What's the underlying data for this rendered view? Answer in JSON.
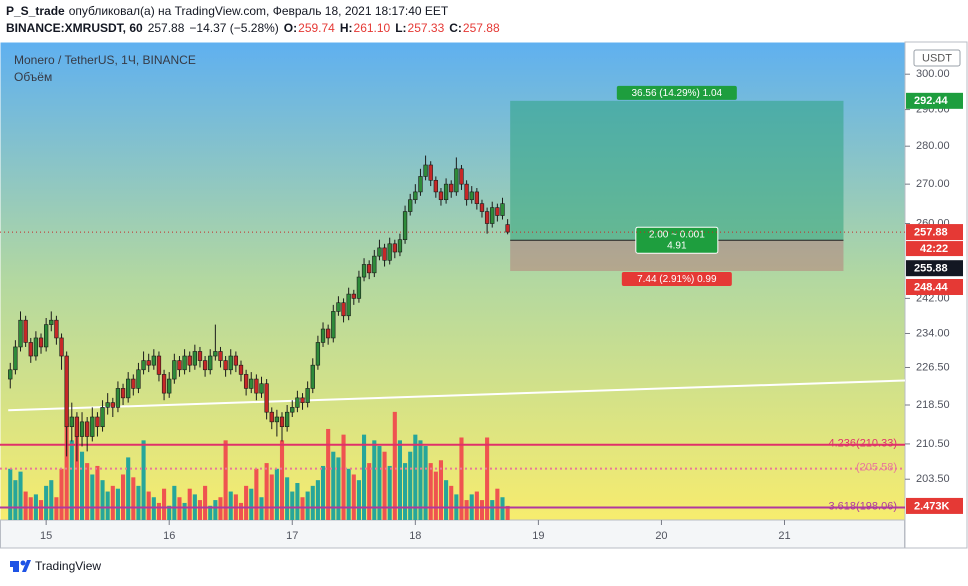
{
  "header": {
    "author": "P_S_trade",
    "published": "опубликовал(а) на TradingView.com, Февраль 18, 2021 18:17:40 EET",
    "symbol": "BINANCE:XMRUSDT, 60",
    "last": "257.88",
    "change": "−14.37 (−5.28%)",
    "ohlc": [
      {
        "key": "O:",
        "value": "259.74"
      },
      {
        "key": "H:",
        "value": "261.10"
      },
      {
        "key": "L:",
        "value": "257.33"
      },
      {
        "key": "C:",
        "value": "257.88"
      }
    ]
  },
  "chart_data": {
    "type": "candlestick",
    "title": "Monero / TetherUS, 1Ч, BINANCE",
    "volume_title": "Объём",
    "currency": "USDT",
    "log_scale": true,
    "ylim": [
      195.7,
      309.4
    ],
    "yticks": [
      {
        "value": 300,
        "label": "300.00"
      },
      {
        "value": 290,
        "label": "290.00"
      },
      {
        "value": 280,
        "label": "280.00"
      },
      {
        "value": 270,
        "label": "270.00"
      },
      {
        "value": 260,
        "label": "260.00"
      },
      {
        "value": 242,
        "label": "242.00"
      },
      {
        "value": 234,
        "label": "234.00"
      },
      {
        "value": 226.5,
        "label": "226.50"
      },
      {
        "value": 218.5,
        "label": "218.50"
      },
      {
        "value": 210.5,
        "label": "210.50"
      },
      {
        "value": 203.5,
        "label": "203.50"
      }
    ],
    "xlim": [
      -2,
      174.5
    ],
    "xticks": [
      {
        "value": 7,
        "label": "15"
      },
      {
        "value": 31,
        "label": "16"
      },
      {
        "value": 55,
        "label": "17"
      },
      {
        "value": 79,
        "label": "18"
      },
      {
        "value": 103,
        "label": "19"
      },
      {
        "value": 127,
        "label": "20"
      },
      {
        "value": 151,
        "label": "21"
      }
    ],
    "up_color": "#2e8b3a",
    "down_color": "#c62828",
    "volume_up_color": "#26a69a",
    "volume_down_color": "#ef5350",
    "candles": [
      [
        224,
        227.5,
        222,
        226
      ],
      [
        226,
        232.5,
        225,
        231
      ],
      [
        231,
        239,
        230,
        237
      ],
      [
        237,
        238,
        231,
        232
      ],
      [
        232,
        233,
        227.5,
        229
      ],
      [
        229,
        234.5,
        228,
        233
      ],
      [
        233,
        234,
        229.5,
        231
      ],
      [
        231,
        237.5,
        230,
        236
      ],
      [
        236,
        239,
        234.5,
        237
      ],
      [
        237,
        238,
        231.5,
        233
      ],
      [
        233,
        234,
        226,
        229
      ],
      [
        229,
        230,
        208,
        214
      ],
      [
        214,
        219,
        211,
        216
      ],
      [
        216,
        217,
        207,
        212
      ],
      [
        212,
        217,
        210,
        215
      ],
      [
        215,
        216,
        209,
        212
      ],
      [
        212,
        218,
        211,
        216
      ],
      [
        216,
        217,
        212,
        214
      ],
      [
        214,
        219.5,
        213,
        218
      ],
      [
        218,
        221,
        216.5,
        219
      ],
      [
        219,
        220,
        216,
        218
      ],
      [
        218,
        223.5,
        217,
        222
      ],
      [
        222,
        223,
        218.5,
        220
      ],
      [
        220,
        225.5,
        219,
        224
      ],
      [
        224,
        225,
        220.5,
        222
      ],
      [
        222,
        227.5,
        221,
        226
      ],
      [
        226,
        230,
        225,
        228
      ],
      [
        228,
        229.5,
        225.5,
        227
      ],
      [
        227,
        230.5,
        226,
        229
      ],
      [
        229,
        230,
        223.5,
        225
      ],
      [
        225,
        226,
        219.5,
        221
      ],
      [
        221,
        225.5,
        220,
        224
      ],
      [
        224,
        229.5,
        223,
        228
      ],
      [
        228,
        229,
        224.5,
        226
      ],
      [
        226,
        230.5,
        225,
        229
      ],
      [
        229,
        230,
        225.5,
        227
      ],
      [
        227,
        231.5,
        226,
        230
      ],
      [
        230,
        231,
        226.5,
        228
      ],
      [
        228,
        229,
        224.5,
        226
      ],
      [
        226,
        230.5,
        225,
        229
      ],
      [
        229,
        236,
        228,
        230
      ],
      [
        230,
        231,
        226.5,
        228
      ],
      [
        228,
        229,
        224.5,
        226
      ],
      [
        226,
        230.5,
        225,
        229
      ],
      [
        229,
        230,
        225.5,
        227
      ],
      [
        227,
        228,
        223.5,
        225
      ],
      [
        225,
        226,
        220.5,
        222
      ],
      [
        222,
        225.5,
        221,
        224
      ],
      [
        224,
        225,
        219.5,
        221
      ],
      [
        221,
        224.5,
        220,
        223
      ],
      [
        223,
        224,
        215.5,
        217
      ],
      [
        217,
        218,
        213.5,
        215
      ],
      [
        215,
        217.5,
        212,
        216
      ],
      [
        216,
        217,
        211,
        214
      ],
      [
        214,
        218.5,
        213,
        217
      ],
      [
        217,
        219.5,
        216,
        218
      ],
      [
        218,
        221.5,
        217,
        220
      ],
      [
        220,
        221,
        217.5,
        219
      ],
      [
        219,
        223.5,
        218,
        222
      ],
      [
        222,
        228.5,
        221,
        227
      ],
      [
        227,
        233.5,
        226,
        232
      ],
      [
        232,
        236.5,
        231,
        235
      ],
      [
        235,
        236,
        231.5,
        233
      ],
      [
        233,
        240.5,
        232,
        239
      ],
      [
        239,
        242.5,
        238,
        241
      ],
      [
        241,
        242,
        236.5,
        238
      ],
      [
        238,
        244.5,
        237,
        243
      ],
      [
        243,
        244,
        240.5,
        242
      ],
      [
        242,
        248.5,
        241,
        247
      ],
      [
        247,
        251.5,
        246,
        250
      ],
      [
        250,
        251,
        246.5,
        248
      ],
      [
        248,
        253.5,
        247,
        252
      ],
      [
        252,
        256,
        251,
        254
      ],
      [
        254,
        255,
        249.5,
        251
      ],
      [
        251,
        256.5,
        250,
        255
      ],
      [
        255,
        256,
        251.5,
        253
      ],
      [
        253,
        257.5,
        252,
        256
      ],
      [
        256,
        264.5,
        255,
        263
      ],
      [
        263,
        267.5,
        262,
        266
      ],
      [
        266,
        270,
        265,
        268
      ],
      [
        268,
        274,
        267,
        272
      ],
      [
        272,
        277.5,
        271,
        275
      ],
      [
        275,
        276,
        269.5,
        271
      ],
      [
        271,
        272,
        266.5,
        268
      ],
      [
        268,
        269,
        264.5,
        266
      ],
      [
        266,
        271.5,
        265,
        270
      ],
      [
        270,
        271,
        266.5,
        268
      ],
      [
        268,
        277,
        267,
        274
      ],
      [
        274,
        275,
        268.5,
        270
      ],
      [
        270,
        271,
        264.5,
        266
      ],
      [
        266,
        269.5,
        265,
        268
      ],
      [
        268,
        269,
        263.5,
        265
      ],
      [
        265,
        266,
        261.5,
        263
      ],
      [
        263,
        264,
        257.5,
        260
      ],
      [
        260,
        265.5,
        259,
        264
      ],
      [
        264,
        265,
        260.5,
        262
      ],
      [
        262,
        266.5,
        261,
        265
      ],
      [
        259.74,
        261.1,
        257.33,
        257.88
      ]
    ],
    "volume": [
      9000,
      7000,
      8500,
      5000,
      4000,
      4500,
      3500,
      6000,
      7000,
      4000,
      9000,
      17000,
      14000,
      16000,
      12000,
      10000,
      8000,
      9500,
      7000,
      5000,
      6000,
      5500,
      8000,
      11000,
      7500,
      6000,
      14000,
      5000,
      4000,
      3000,
      5500,
      2500,
      6000,
      4000,
      3000,
      5500,
      4500,
      3500,
      6000,
      2500,
      3500,
      4000,
      14000,
      5000,
      4500,
      3000,
      6000,
      5500,
      9000,
      4000,
      10000,
      8000,
      9000,
      14000,
      7500,
      5000,
      6500,
      4000,
      5000,
      6000,
      7000,
      9500,
      16000,
      12000,
      11000,
      15000,
      9000,
      8000,
      7000,
      15000,
      10000,
      14000,
      13000,
      12000,
      9500,
      19000,
      14000,
      10000,
      12000,
      15000,
      14000,
      13000,
      10000,
      8500,
      10500,
      7000,
      6000,
      4500,
      14500,
      3500,
      4500,
      5000,
      3500,
      14500,
      3500,
      5500,
      4000,
      2473
    ],
    "volume_lim": [
      0,
      84000
    ],
    "volume_tag": {
      "value": 2473,
      "label": "2.473K"
    },
    "last_price": 257.88,
    "countdown": "42:22",
    "trend_line": [
      [
        -0.4,
        217.4
      ],
      [
        174.5,
        223.7
      ]
    ],
    "fib_levels": [
      {
        "value": 210.33,
        "label": "4.236(210.33)",
        "color": "#e0306a",
        "style": "solid"
      },
      {
        "value": 205.58,
        "label": "(205.58)",
        "color": "#e8799a",
        "style": "dotted"
      },
      {
        "value": 198.06,
        "label": "3.618(198.06)",
        "color": "#b0399f",
        "style": "solid"
      }
    ],
    "position": {
      "x_range": [
        97.5,
        162.5
      ],
      "target": 292.44,
      "entry": 255.88,
      "stop": 248.44,
      "target_label": "36.56 (14.29%) 1.04",
      "mid_label": [
        "2.00 ~ 0.001",
        "4.91"
      ],
      "stop_label": "7.44 (2.91%) 0.99"
    }
  },
  "footer": "TradingView"
}
